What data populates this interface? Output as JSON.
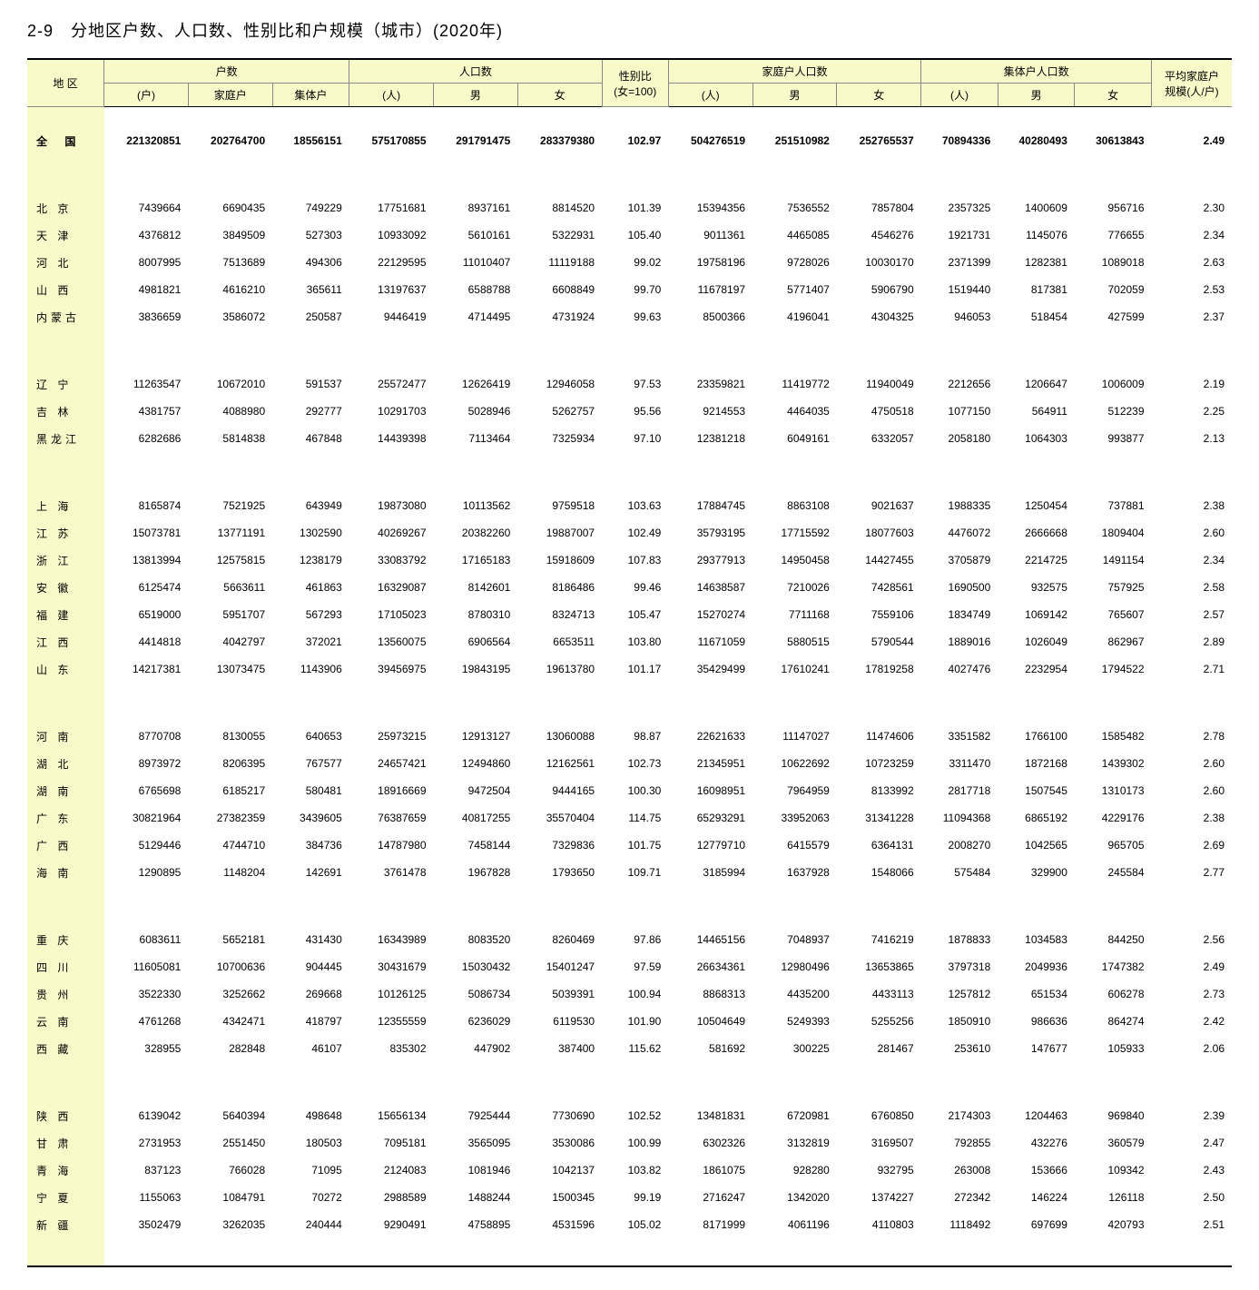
{
  "title": "2-9　分地区户数、人口数、性别比和户规模（城市）(2020年)",
  "header": {
    "region": "地 区",
    "households": "户数\n(户)",
    "households_family": "家庭户",
    "households_collective": "集体户",
    "population": "人口数\n(人)",
    "population_male": "男",
    "population_female": "女",
    "sex_ratio": "性别比\n(女=100)",
    "family_pop": "家庭户人口数\n(人)",
    "family_pop_male": "男",
    "family_pop_female": "女",
    "collective_pop": "集体户人口数\n(人)",
    "collective_pop_male": "男",
    "collective_pop_female": "女",
    "avg_size": "平均家庭户\n规模(人/户)"
  },
  "groups": [
    [
      {
        "region": "全 国",
        "national": true,
        "cells": [
          "221320851",
          "202764700",
          "18556151",
          "575170855",
          "291791475",
          "283379380",
          "102.97",
          "504276519",
          "251510982",
          "252765537",
          "70894336",
          "40280493",
          "30613843",
          "2.49"
        ]
      }
    ],
    [
      {
        "region": "北 京",
        "cells": [
          "7439664",
          "6690435",
          "749229",
          "17751681",
          "8937161",
          "8814520",
          "101.39",
          "15394356",
          "7536552",
          "7857804",
          "2357325",
          "1400609",
          "956716",
          "2.30"
        ]
      },
      {
        "region": "天 津",
        "cells": [
          "4376812",
          "3849509",
          "527303",
          "10933092",
          "5610161",
          "5322931",
          "105.40",
          "9011361",
          "4465085",
          "4546276",
          "1921731",
          "1145076",
          "776655",
          "2.34"
        ]
      },
      {
        "region": "河 北",
        "cells": [
          "8007995",
          "7513689",
          "494306",
          "22129595",
          "11010407",
          "11119188",
          "99.02",
          "19758196",
          "9728026",
          "10030170",
          "2371399",
          "1282381",
          "1089018",
          "2.63"
        ]
      },
      {
        "region": "山 西",
        "cells": [
          "4981821",
          "4616210",
          "365611",
          "13197637",
          "6588788",
          "6608849",
          "99.70",
          "11678197",
          "5771407",
          "5906790",
          "1519440",
          "817381",
          "702059",
          "2.53"
        ]
      },
      {
        "region": "内蒙古",
        "cells": [
          "3836659",
          "3586072",
          "250587",
          "9446419",
          "4714495",
          "4731924",
          "99.63",
          "8500366",
          "4196041",
          "4304325",
          "946053",
          "518454",
          "427599",
          "2.37"
        ]
      }
    ],
    [
      {
        "region": "辽 宁",
        "cells": [
          "11263547",
          "10672010",
          "591537",
          "25572477",
          "12626419",
          "12946058",
          "97.53",
          "23359821",
          "11419772",
          "11940049",
          "2212656",
          "1206647",
          "1006009",
          "2.19"
        ]
      },
      {
        "region": "吉 林",
        "cells": [
          "4381757",
          "4088980",
          "292777",
          "10291703",
          "5028946",
          "5262757",
          "95.56",
          "9214553",
          "4464035",
          "4750518",
          "1077150",
          "564911",
          "512239",
          "2.25"
        ]
      },
      {
        "region": "黑龙江",
        "cells": [
          "6282686",
          "5814838",
          "467848",
          "14439398",
          "7113464",
          "7325934",
          "97.10",
          "12381218",
          "6049161",
          "6332057",
          "2058180",
          "1064303",
          "993877",
          "2.13"
        ]
      }
    ],
    [
      {
        "region": "上 海",
        "cells": [
          "8165874",
          "7521925",
          "643949",
          "19873080",
          "10113562",
          "9759518",
          "103.63",
          "17884745",
          "8863108",
          "9021637",
          "1988335",
          "1250454",
          "737881",
          "2.38"
        ]
      },
      {
        "region": "江 苏",
        "cells": [
          "15073781",
          "13771191",
          "1302590",
          "40269267",
          "20382260",
          "19887007",
          "102.49",
          "35793195",
          "17715592",
          "18077603",
          "4476072",
          "2666668",
          "1809404",
          "2.60"
        ]
      },
      {
        "region": "浙 江",
        "cells": [
          "13813994",
          "12575815",
          "1238179",
          "33083792",
          "17165183",
          "15918609",
          "107.83",
          "29377913",
          "14950458",
          "14427455",
          "3705879",
          "2214725",
          "1491154",
          "2.34"
        ]
      },
      {
        "region": "安 徽",
        "cells": [
          "6125474",
          "5663611",
          "461863",
          "16329087",
          "8142601",
          "8186486",
          "99.46",
          "14638587",
          "7210026",
          "7428561",
          "1690500",
          "932575",
          "757925",
          "2.58"
        ]
      },
      {
        "region": "福 建",
        "cells": [
          "6519000",
          "5951707",
          "567293",
          "17105023",
          "8780310",
          "8324713",
          "105.47",
          "15270274",
          "7711168",
          "7559106",
          "1834749",
          "1069142",
          "765607",
          "2.57"
        ]
      },
      {
        "region": "江 西",
        "cells": [
          "4414818",
          "4042797",
          "372021",
          "13560075",
          "6906564",
          "6653511",
          "103.80",
          "11671059",
          "5880515",
          "5790544",
          "1889016",
          "1026049",
          "862967",
          "2.89"
        ]
      },
      {
        "region": "山 东",
        "cells": [
          "14217381",
          "13073475",
          "1143906",
          "39456975",
          "19843195",
          "19613780",
          "101.17",
          "35429499",
          "17610241",
          "17819258",
          "4027476",
          "2232954",
          "1794522",
          "2.71"
        ]
      }
    ],
    [
      {
        "region": "河 南",
        "cells": [
          "8770708",
          "8130055",
          "640653",
          "25973215",
          "12913127",
          "13060088",
          "98.87",
          "22621633",
          "11147027",
          "11474606",
          "3351582",
          "1766100",
          "1585482",
          "2.78"
        ]
      },
      {
        "region": "湖 北",
        "cells": [
          "8973972",
          "8206395",
          "767577",
          "24657421",
          "12494860",
          "12162561",
          "102.73",
          "21345951",
          "10622692",
          "10723259",
          "3311470",
          "1872168",
          "1439302",
          "2.60"
        ]
      },
      {
        "region": "湖 南",
        "cells": [
          "6765698",
          "6185217",
          "580481",
          "18916669",
          "9472504",
          "9444165",
          "100.30",
          "16098951",
          "7964959",
          "8133992",
          "2817718",
          "1507545",
          "1310173",
          "2.60"
        ]
      },
      {
        "region": "广 东",
        "cells": [
          "30821964",
          "27382359",
          "3439605",
          "76387659",
          "40817255",
          "35570404",
          "114.75",
          "65293291",
          "33952063",
          "31341228",
          "11094368",
          "6865192",
          "4229176",
          "2.38"
        ]
      },
      {
        "region": "广 西",
        "cells": [
          "5129446",
          "4744710",
          "384736",
          "14787980",
          "7458144",
          "7329836",
          "101.75",
          "12779710",
          "6415579",
          "6364131",
          "2008270",
          "1042565",
          "965705",
          "2.69"
        ]
      },
      {
        "region": "海 南",
        "cells": [
          "1290895",
          "1148204",
          "142691",
          "3761478",
          "1967828",
          "1793650",
          "109.71",
          "3185994",
          "1637928",
          "1548066",
          "575484",
          "329900",
          "245584",
          "2.77"
        ]
      }
    ],
    [
      {
        "region": "重 庆",
        "cells": [
          "6083611",
          "5652181",
          "431430",
          "16343989",
          "8083520",
          "8260469",
          "97.86",
          "14465156",
          "7048937",
          "7416219",
          "1878833",
          "1034583",
          "844250",
          "2.56"
        ]
      },
      {
        "region": "四 川",
        "cells": [
          "11605081",
          "10700636",
          "904445",
          "30431679",
          "15030432",
          "15401247",
          "97.59",
          "26634361",
          "12980496",
          "13653865",
          "3797318",
          "2049936",
          "1747382",
          "2.49"
        ]
      },
      {
        "region": "贵 州",
        "cells": [
          "3522330",
          "3252662",
          "269668",
          "10126125",
          "5086734",
          "5039391",
          "100.94",
          "8868313",
          "4435200",
          "4433113",
          "1257812",
          "651534",
          "606278",
          "2.73"
        ]
      },
      {
        "region": "云 南",
        "cells": [
          "4761268",
          "4342471",
          "418797",
          "12355559",
          "6236029",
          "6119530",
          "101.90",
          "10504649",
          "5249393",
          "5255256",
          "1850910",
          "986636",
          "864274",
          "2.42"
        ]
      },
      {
        "region": "西 藏",
        "cells": [
          "328955",
          "282848",
          "46107",
          "835302",
          "447902",
          "387400",
          "115.62",
          "581692",
          "300225",
          "281467",
          "253610",
          "147677",
          "105933",
          "2.06"
        ]
      }
    ],
    [
      {
        "region": "陕 西",
        "cells": [
          "6139042",
          "5640394",
          "498648",
          "15656134",
          "7925444",
          "7730690",
          "102.52",
          "13481831",
          "6720981",
          "6760850",
          "2174303",
          "1204463",
          "969840",
          "2.39"
        ]
      },
      {
        "region": "甘 肃",
        "cells": [
          "2731953",
          "2551450",
          "180503",
          "7095181",
          "3565095",
          "3530086",
          "100.99",
          "6302326",
          "3132819",
          "3169507",
          "792855",
          "432276",
          "360579",
          "2.47"
        ]
      },
      {
        "region": "青 海",
        "cells": [
          "837123",
          "766028",
          "71095",
          "2124083",
          "1081946",
          "1042137",
          "103.82",
          "1861075",
          "928280",
          "932795",
          "263008",
          "153666",
          "109342",
          "2.43"
        ]
      },
      {
        "region": "宁 夏",
        "cells": [
          "1155063",
          "1084791",
          "70272",
          "2988589",
          "1488244",
          "1500345",
          "99.19",
          "2716247",
          "1342020",
          "1374227",
          "272342",
          "146224",
          "126118",
          "2.50"
        ]
      },
      {
        "region": "新 疆",
        "cells": [
          "3502479",
          "3262035",
          "240444",
          "9290491",
          "4758895",
          "4531596",
          "105.02",
          "8171999",
          "4061196",
          "4110803",
          "1118492",
          "697699",
          "420793",
          "2.51"
        ]
      }
    ]
  ]
}
